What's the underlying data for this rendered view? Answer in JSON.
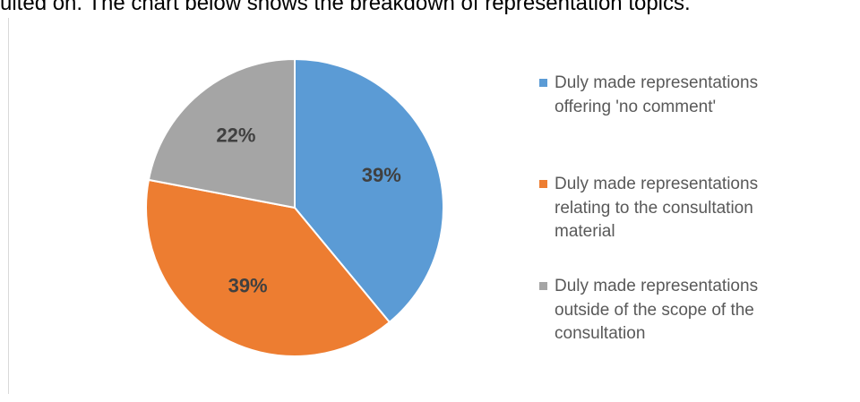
{
  "intro_text": "ulted on. The chart below shows the breakdown of representation topics.",
  "chart_data": {
    "type": "pie",
    "categories": [
      "Duly made representations offering 'no comment'",
      "Duly made representations relating to the consultation material",
      "Duly made representations outside of the scope of the consultation"
    ],
    "values": [
      39,
      39,
      22
    ],
    "value_labels": [
      "39%",
      "39%",
      "22%"
    ],
    "colors": [
      "#5b9bd5",
      "#ed7d31",
      "#a5a5a5"
    ],
    "legend": "right"
  }
}
